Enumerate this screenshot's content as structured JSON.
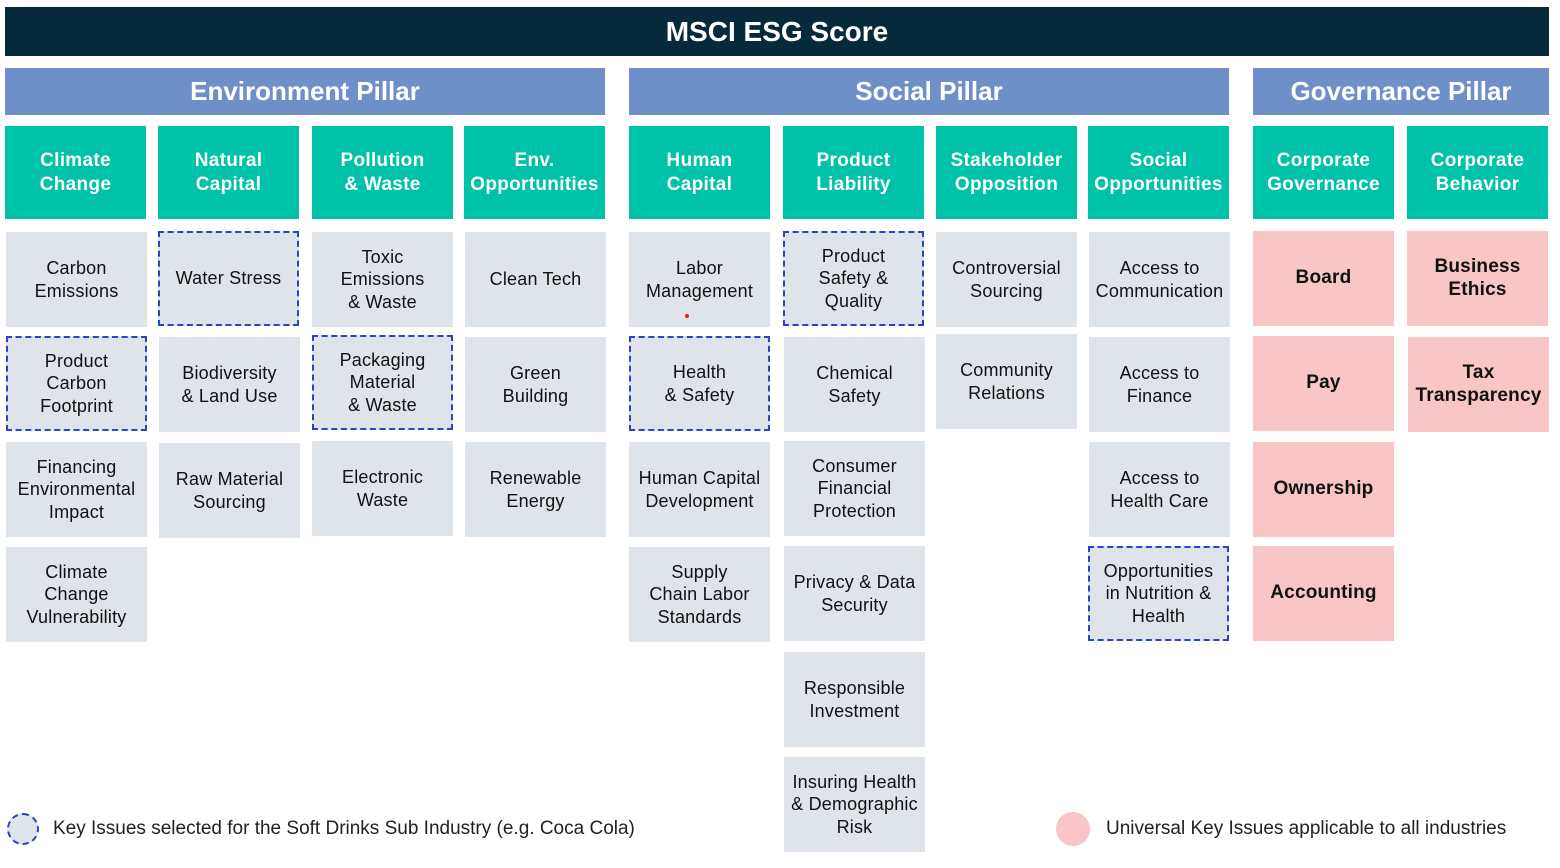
{
  "title": "MSCI ESG Score",
  "pillars": [
    {
      "label": "Environment Pillar"
    },
    {
      "label": "Social Pillar"
    },
    {
      "label": "Governance Pillar"
    }
  ],
  "themes": [
    {
      "label": "Climate\nChange"
    },
    {
      "label": "Natural\nCapital"
    },
    {
      "label": "Pollution\n& Waste"
    },
    {
      "label": "Env.\nOpportunities"
    },
    {
      "label": "Human\nCapital"
    },
    {
      "label": "Product\nLiability"
    },
    {
      "label": "Stakeholder\nOpposition"
    },
    {
      "label": "Social\nOpportunities"
    },
    {
      "label": "Corporate\nGovernance"
    },
    {
      "label": "Corporate\nBehavior"
    }
  ],
  "issues": {
    "climate_change": [
      "Carbon\nEmissions",
      "Product\nCarbon\nFootprint",
      "Financing\nEnvironmental\nImpact",
      "Climate\nChange\nVulnerability"
    ],
    "natural_capital": [
      "Water Stress",
      "Biodiversity\n& Land Use",
      "Raw Material\nSourcing"
    ],
    "pollution_waste": [
      "Toxic\nEmissions\n& Waste",
      "Packaging\nMaterial\n& Waste",
      "Electronic\nWaste"
    ],
    "env_opportunities": [
      "Clean Tech",
      "Green\nBuilding",
      "Renewable\nEnergy"
    ],
    "human_capital": [
      "Labor\nManagement",
      "Health\n& Safety",
      "Human Capital\nDevelopment",
      "Supply\nChain Labor\nStandards"
    ],
    "product_liability": [
      "Product\nSafety &\nQuality",
      "Chemical\nSafety",
      "Consumer\nFinancial\nProtection",
      "Privacy  & Data\nSecurity",
      "Responsible\nInvestment",
      "Insuring Health\n& Demographic\nRisk"
    ],
    "stakeholder_opposition": [
      "Controversial\nSourcing",
      "Community\nRelations"
    ],
    "social_opportunities": [
      "Access to\nCommunication",
      "Access to\nFinance",
      "Access to\nHealth Care",
      "Opportunities\nin Nutrition &\nHealth"
    ],
    "corporate_governance": [
      "Board",
      "Pay",
      "Ownership",
      "Accounting"
    ],
    "corporate_behavior": [
      "Business\nEthics",
      "Tax\nTransparency"
    ]
  },
  "legend": {
    "key_issues": "Key Issues selected for the Soft Drinks Sub Industry (e.g. Coca Cola)",
    "universal": "Universal Key Issues applicable to all industries"
  },
  "colors": {
    "banner": "#062a3b",
    "pillar": "#6f8fc8",
    "theme": "#00c2a8",
    "issue": "#dfe3ea",
    "universal": "#f8c6c6",
    "key_border": "#2a45c4"
  }
}
